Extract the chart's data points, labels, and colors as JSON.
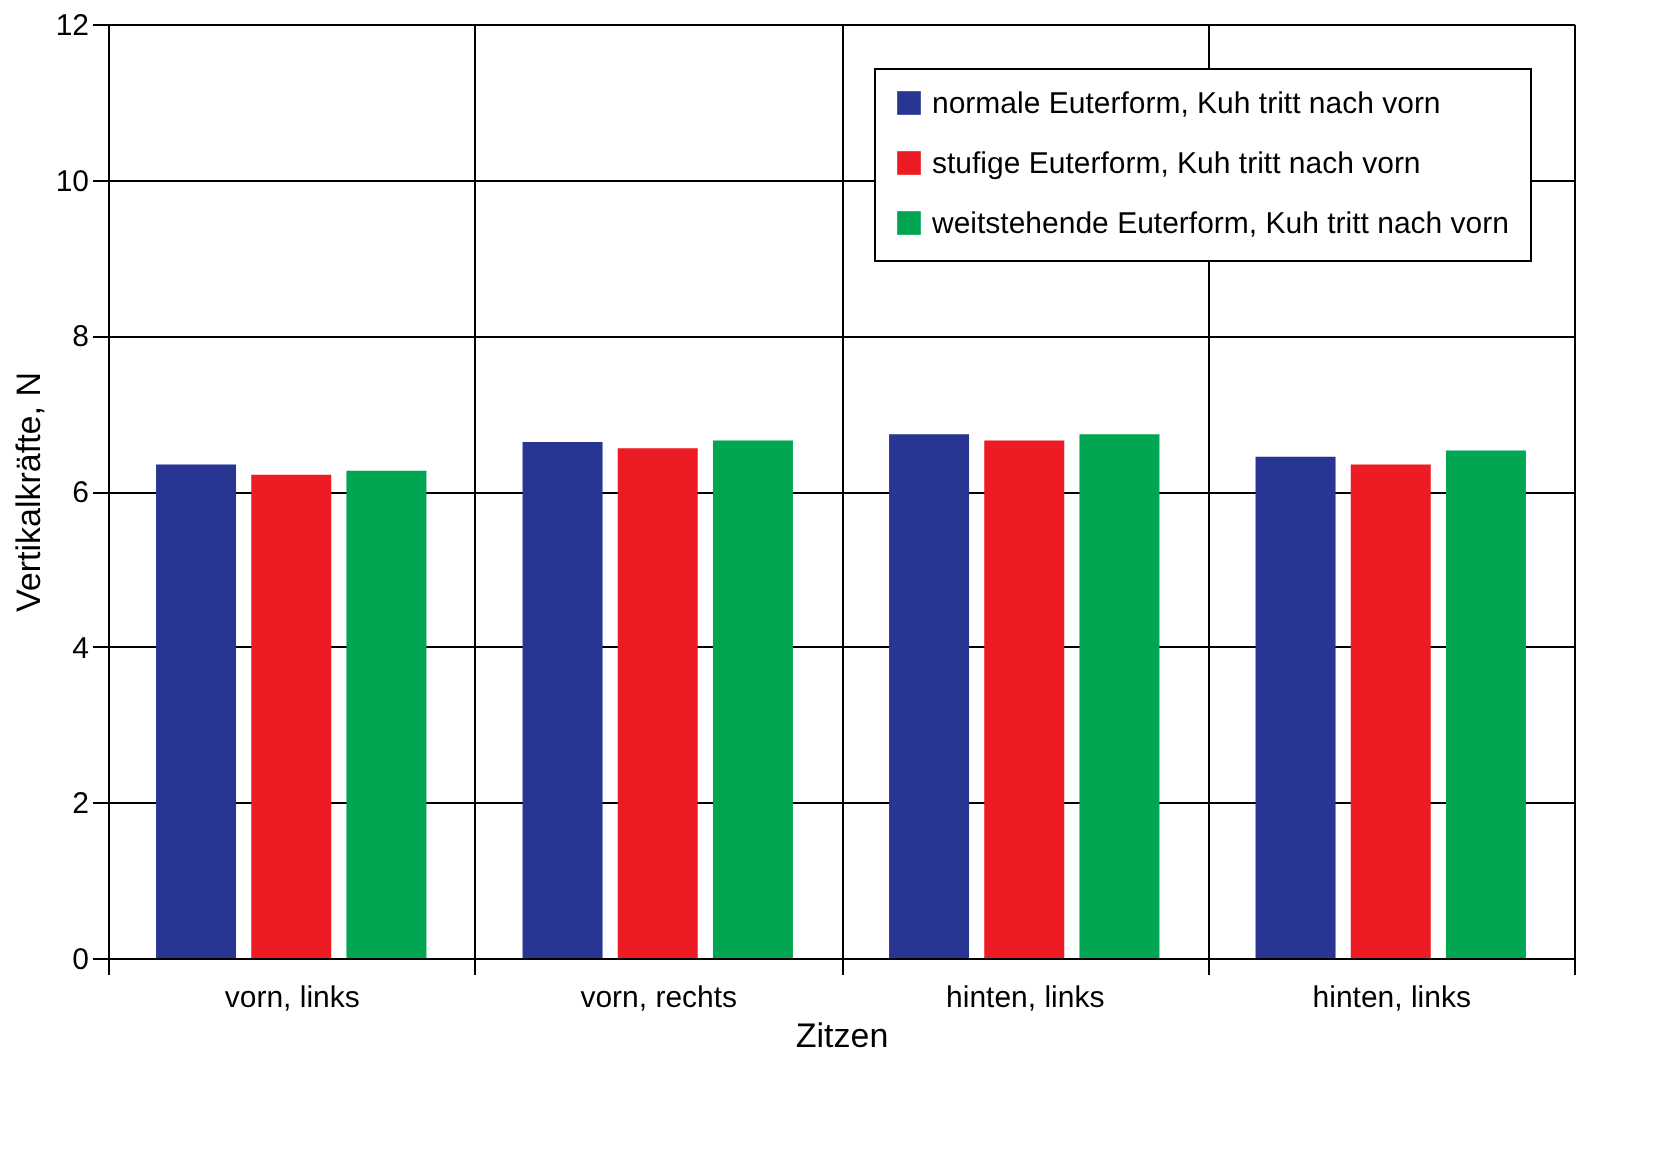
{
  "chart_data": {
    "type": "bar",
    "xlabel": "Zitzen",
    "ylabel": "Vertikalkräfte, N",
    "categories": [
      "vorn, links",
      "vorn, rechts",
      "hinten, links",
      "hinten, links"
    ],
    "series": [
      {
        "name": "normale Euterform, Kuh tritt nach vorn",
        "color": "#283593",
        "values": [
          6.34,
          6.63,
          6.73,
          6.44
        ]
      },
      {
        "name": "stufige Euterform, Kuh tritt nach vorn",
        "color": "#ed1c24",
        "values": [
          6.21,
          6.55,
          6.65,
          6.34
        ]
      },
      {
        "name": "weitstehende Euterform, Kuh tritt nach vorn",
        "color": "#00a651",
        "values": [
          6.26,
          6.65,
          6.73,
          6.52
        ]
      }
    ],
    "ylim": [
      0,
      12
    ],
    "yticks": [
      0,
      2,
      4,
      6,
      8,
      10,
      12
    ],
    "grid": true,
    "legend": "top right"
  }
}
